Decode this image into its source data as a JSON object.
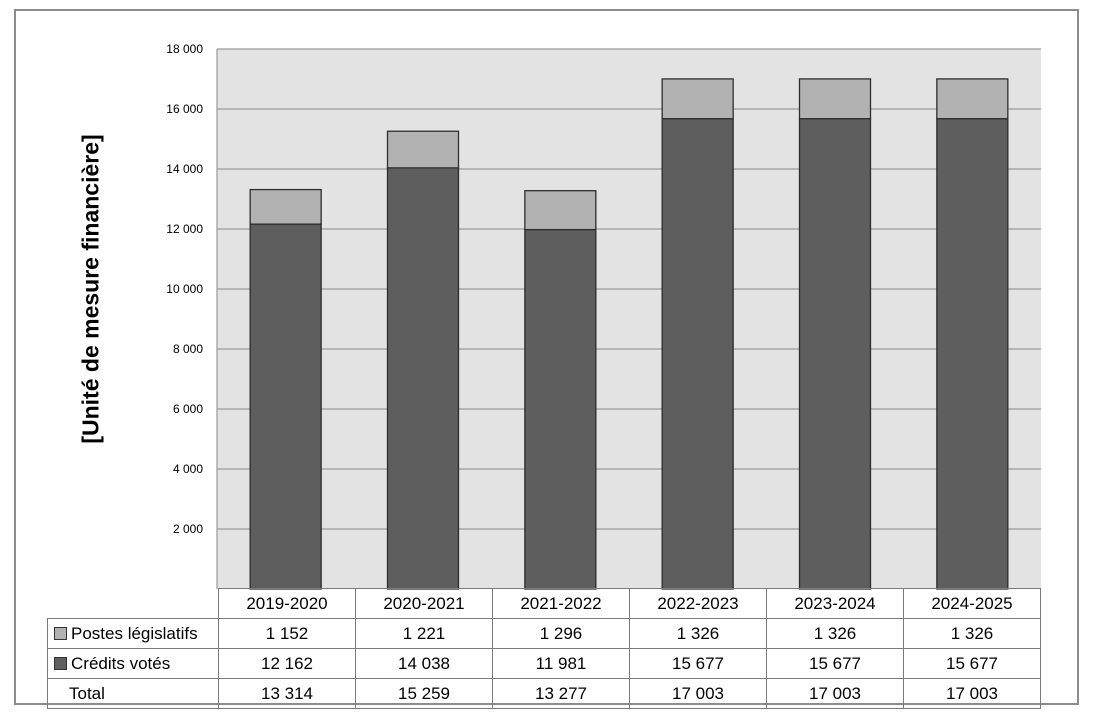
{
  "chart_data": {
    "type": "bar",
    "stacked": true,
    "categories": [
      "2019-2020",
      "2020-2021",
      "2021-2022",
      "2022-2023",
      "2023-2024",
      "2024-2025"
    ],
    "series": [
      {
        "name": "Crédits votés",
        "values": [
          12162,
          14038,
          11981,
          15677,
          15677,
          15677
        ],
        "color": "#5e5e5e",
        "labels": [
          "12 162",
          "14 038",
          "11 981",
          "15 677",
          "15 677",
          "15 677"
        ]
      },
      {
        "name": "Postes législatifs",
        "values": [
          1152,
          1221,
          1296,
          1326,
          1326,
          1326
        ],
        "color": "#b2b2b2",
        "labels": [
          "1 152",
          "1 221",
          "1 296",
          "1 326",
          "1 326",
          "1 326"
        ]
      }
    ],
    "totals": {
      "name": "Total",
      "labels": [
        "13 314",
        "15 259",
        "13 277",
        "17 003",
        "17 003",
        "17 003"
      ]
    },
    "ylabel": "[Unité de mesure financière]",
    "yticks": [
      "2 000",
      "4 000",
      "6 000",
      "8 000",
      "10 000",
      "12 000",
      "14 000",
      "16 000",
      "18 000"
    ],
    "ylim": [
      0,
      18000
    ],
    "grid": true,
    "legend": "data-table"
  }
}
